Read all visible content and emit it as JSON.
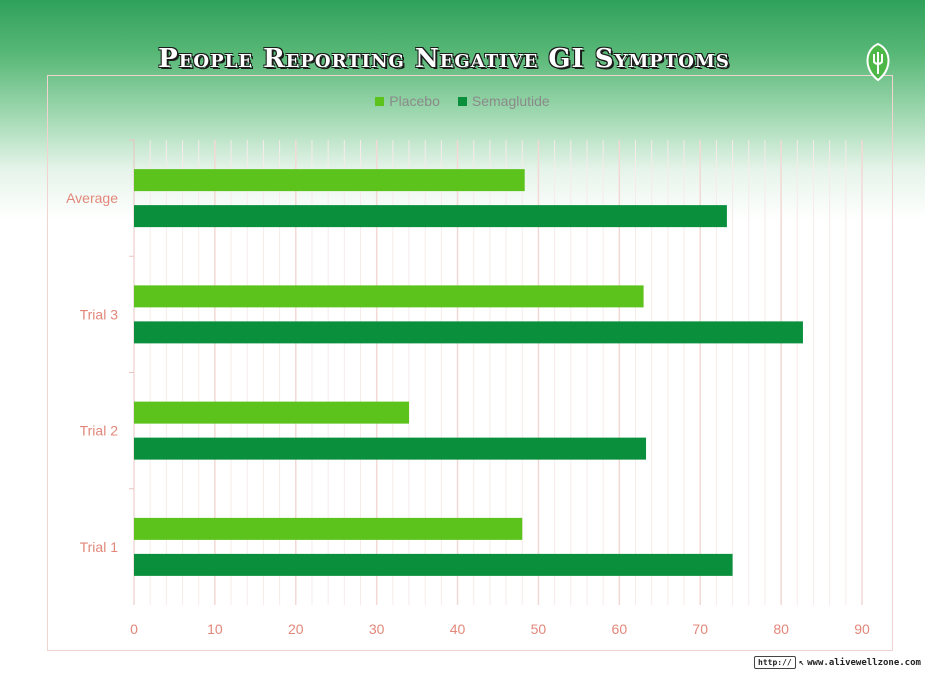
{
  "chart_data": {
    "type": "bar",
    "orientation": "horizontal",
    "title": "People Reporting Negative GI Symptoms",
    "categories": [
      "Trial 1",
      "Trial 2",
      "Trial 3",
      "Average"
    ],
    "series": [
      {
        "name": "Placebo",
        "values": [
          48,
          34,
          63,
          48.3
        ],
        "color": "#5cc21c"
      },
      {
        "name": "Semaglutide",
        "values": [
          74,
          63.3,
          82.7,
          73.3
        ],
        "color": "#0a8f3c"
      }
    ],
    "xlim": [
      0,
      90
    ],
    "xticks": [
      0,
      10,
      20,
      30,
      40,
      50,
      60,
      70,
      80,
      90
    ],
    "xlabel": "",
    "ylabel": "",
    "grid": true,
    "legend_position": "top"
  },
  "branding": {
    "url_prefix": "http://",
    "url": "www.alivewellzone.com"
  },
  "colors": {
    "grid": "#f3d9d5",
    "tick_text": "#e2877a"
  }
}
